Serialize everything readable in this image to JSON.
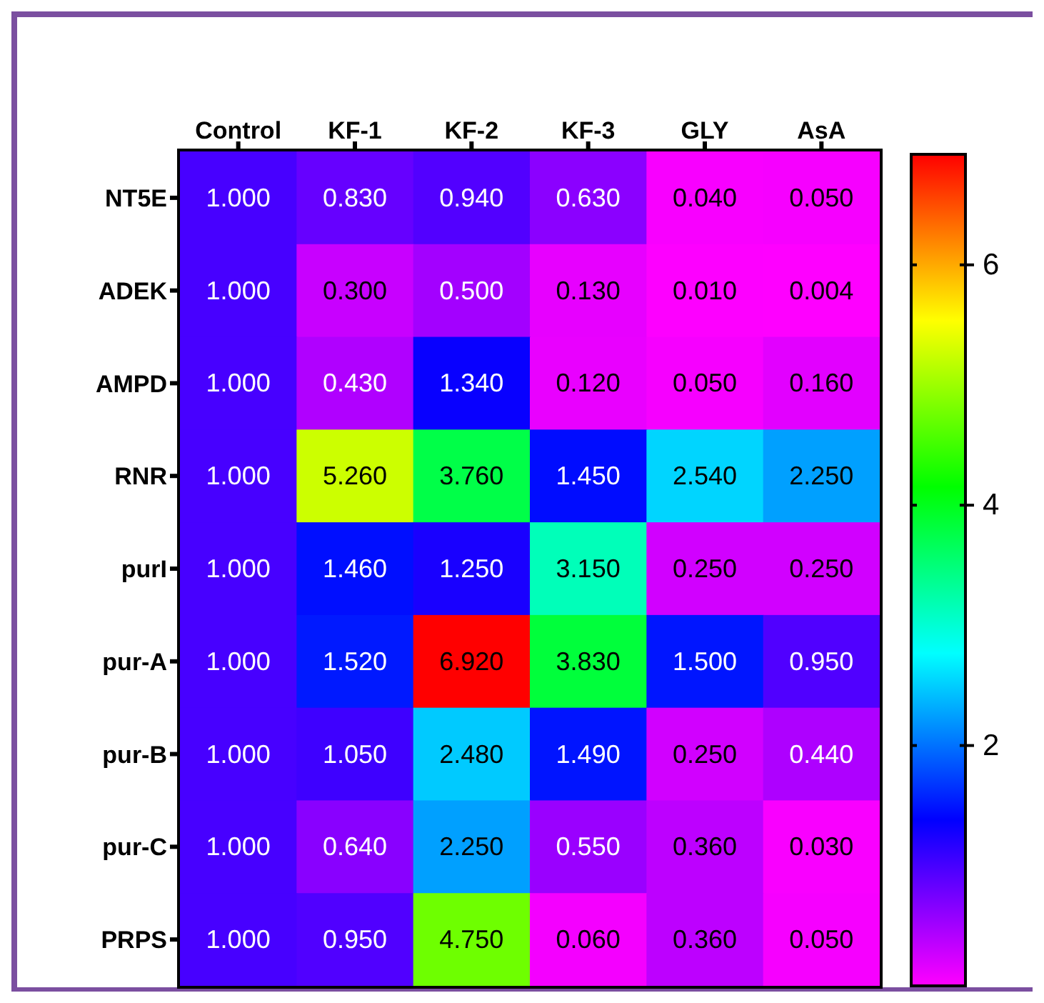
{
  "chart_data": {
    "type": "heatmap",
    "categories": [
      "Control",
      "KF-1",
      "KF-2",
      "KF-3",
      "GLY",
      "AsA"
    ],
    "y_categories": [
      "NT5E",
      "ADEK",
      "AMPD",
      "RNR",
      "purI",
      "pur-A",
      "pur-B",
      "pur-C",
      "PRPS"
    ],
    "cells": [
      [
        1.0,
        0.83,
        0.94,
        0.63,
        0.04,
        0.05
      ],
      [
        1.0,
        0.3,
        0.5,
        0.13,
        0.01,
        0.004
      ],
      [
        1.0,
        0.43,
        1.34,
        0.12,
        0.05,
        0.16
      ],
      [
        1.0,
        5.26,
        3.76,
        1.45,
        2.54,
        2.25
      ],
      [
        1.0,
        1.46,
        1.25,
        3.15,
        0.25,
        0.25
      ],
      [
        1.0,
        1.52,
        6.92,
        3.83,
        1.5,
        0.95
      ],
      [
        1.0,
        1.05,
        2.48,
        1.49,
        0.25,
        0.44
      ],
      [
        1.0,
        0.64,
        2.25,
        0.55,
        0.36,
        0.03
      ],
      [
        1.0,
        0.95,
        4.75,
        0.06,
        0.36,
        0.05
      ]
    ],
    "cell_labels": [
      [
        "1.000",
        "0.830",
        "0.940",
        "0.630",
        "0.040",
        "0.050"
      ],
      [
        "1.000",
        "0.300",
        "0.500",
        "0.130",
        "0.010",
        "0.004"
      ],
      [
        "1.000",
        "0.430",
        "1.340",
        "0.120",
        "0.050",
        "0.160"
      ],
      [
        "1.000",
        "5.260",
        "3.760",
        "1.450",
        "2.540",
        "2.250"
      ],
      [
        "1.000",
        "1.460",
        "1.250",
        "3.150",
        "0.250",
        "0.250"
      ],
      [
        "1.000",
        "1.520",
        "6.920",
        "3.830",
        "1.500",
        "0.950"
      ],
      [
        "1.000",
        "1.050",
        "2.480",
        "1.490",
        "0.250",
        "0.440"
      ],
      [
        "1.000",
        "0.640",
        "2.250",
        "0.550",
        "0.360",
        "0.030"
      ],
      [
        "1.000",
        "0.950",
        "4.750",
        "0.060",
        "0.360",
        "0.050"
      ]
    ],
    "clim": [
      0,
      6.92
    ],
    "cticks": [
      2,
      4,
      6
    ]
  }
}
